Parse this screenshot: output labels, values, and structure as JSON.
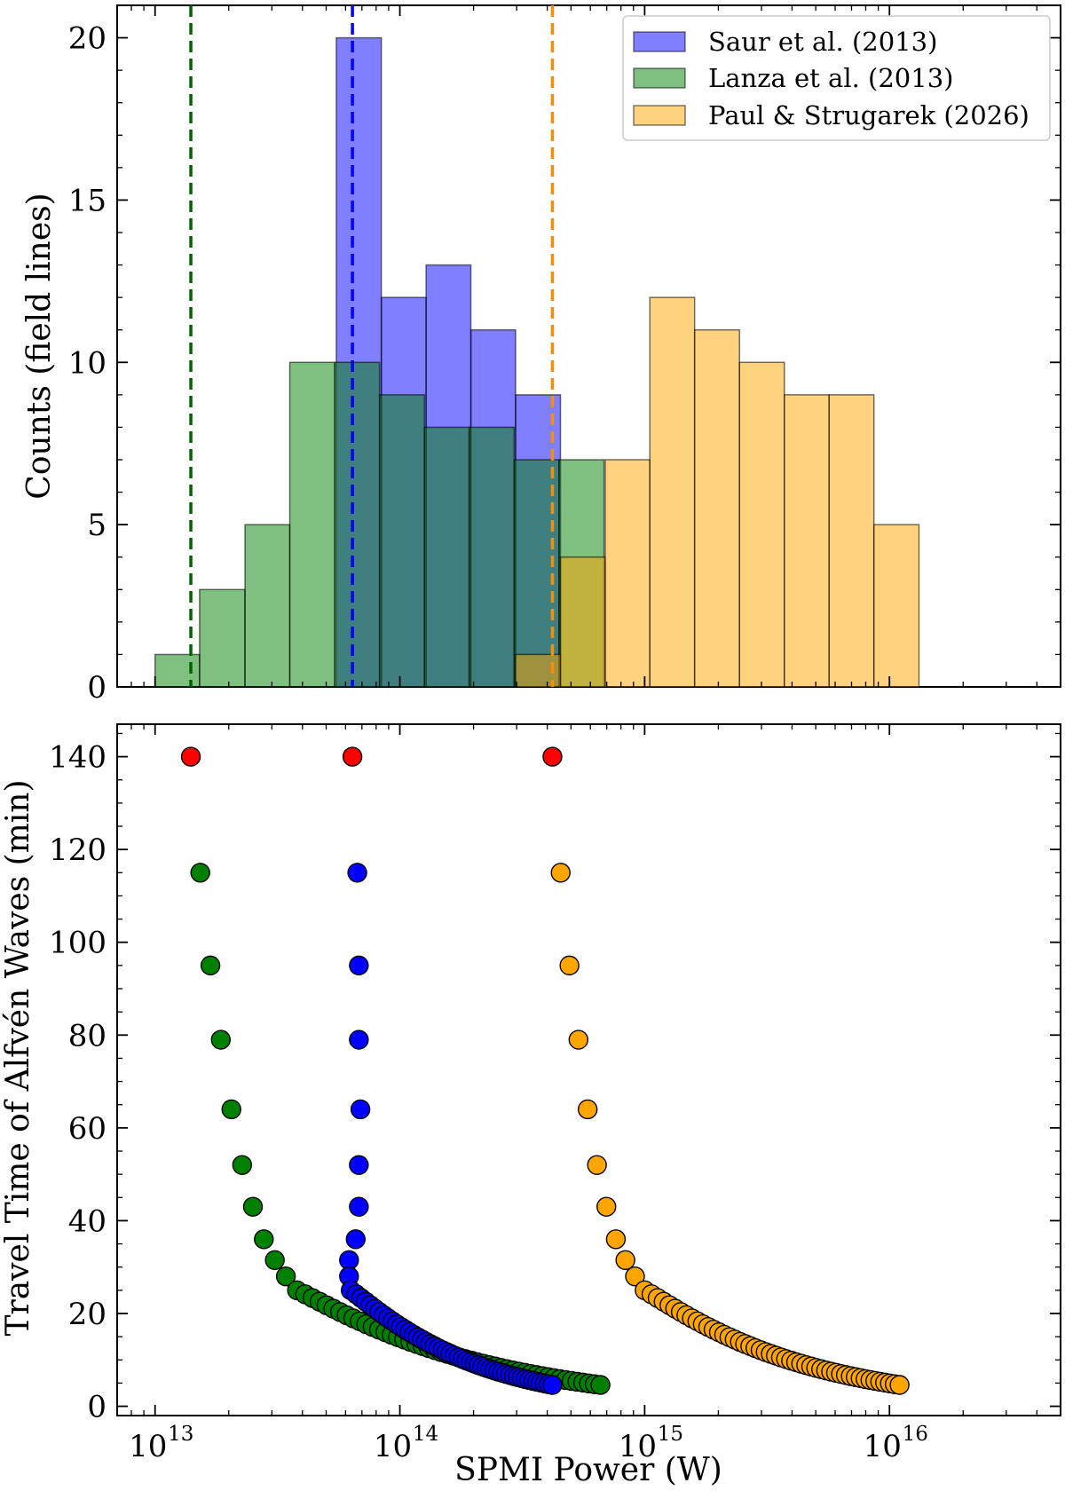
{
  "chart_data": [
    {
      "type": "bar",
      "subtype": "histogram",
      "x_scale": "log",
      "xlim": [
        7000000000000.0,
        5e+16
      ],
      "ylim": [
        0,
        21
      ],
      "ylabel": "Counts (field lines)",
      "yticks": [
        0,
        5,
        10,
        15,
        20
      ],
      "legend": {
        "position": "top-right",
        "entries": [
          "Saur et al. (2013)",
          "Lanza et al. (2013)",
          "Paul & Strugarek (2026)"
        ]
      },
      "series": [
        {
          "name": "Saur et al. (2013)",
          "color": "#0000ff",
          "bin_edges": [
            55000000000000.0,
            84000000000000.0,
            128000000000000.0,
            195000000000000.0,
            297000000000000.0,
            453000000000000.0
          ],
          "counts": [
            20,
            12,
            13,
            11,
            9
          ],
          "median_line": 64000000000000.0,
          "median_line_color": "#0000ff"
        },
        {
          "name": "Lanza et al. (2013)",
          "color": "#008000",
          "bin_edges": [
            10000000000000.0,
            15200000000000.0,
            23300000000000.0,
            35500000000000.0,
            54200000000000.0,
            82600000000000.0,
            126000000000000.0,
            192000000000000.0,
            293000000000000.0,
            447000000000000.0,
            682000000000000.0
          ],
          "counts": [
            1,
            3,
            5,
            10,
            10,
            9,
            8,
            8,
            7,
            7
          ],
          "median_line": 14000000000000.0,
          "median_line_color": "#006400"
        },
        {
          "name": "Paul & Strugarek (2026)",
          "color": "#ffa500",
          "bin_edges": [
            297000000000000.0,
            453000000000000.0,
            690000000000000.0,
            1050000000000000.0,
            1600000000000000.0,
            2440000000000000.0,
            3720000000000000.0,
            5670000000000000.0,
            8640000000000000.0,
            1.32e+16
          ],
          "counts": [
            1,
            4,
            7,
            12,
            11,
            10,
            9,
            9,
            5
          ],
          "median_line": 420000000000000.0,
          "median_line_color": "#ff8c00"
        }
      ]
    },
    {
      "type": "scatter",
      "x_scale": "log",
      "xlim": [
        7000000000000.0,
        5e+16
      ],
      "ylim": [
        -2,
        147
      ],
      "xlabel": "SPMI Power (W)",
      "ylabel": "Travel Time of Alfvén Waves (min)",
      "yticks": [
        0,
        20,
        40,
        60,
        80,
        100,
        120,
        140
      ],
      "xticks": [
        {
          "value": 10000000000000.0,
          "base": "10",
          "exp": "13"
        },
        {
          "value": 100000000000000.0,
          "base": "10",
          "exp": "14"
        },
        {
          "value": 1000000000000000.0,
          "base": "10",
          "exp": "15"
        },
        {
          "value": 1e+16,
          "base": "10",
          "exp": "16"
        }
      ],
      "highlight_color": "#ff0000",
      "series": [
        {
          "name": "green",
          "color": "#008000",
          "point_count": 60,
          "x_top": 14000000000000.0,
          "x_end": 660000000000000.0,
          "y_end": 4.6,
          "knee_x": 38000000000000.0,
          "knee_y": 25
        },
        {
          "name": "blue",
          "color": "#0000ff",
          "point_count": 60,
          "x_top": 64000000000000.0,
          "x_end": 420000000000000.0,
          "y_end": 4.6,
          "knee_x": 63000000000000.0,
          "knee_y": 25
        },
        {
          "name": "orange",
          "color": "#ffa500",
          "point_count": 60,
          "x_top": 420000000000000.0,
          "x_end": 1.1e+16,
          "y_end": 4.6,
          "knee_x": 1000000000000000.0,
          "knee_y": 25
        }
      ]
    }
  ]
}
